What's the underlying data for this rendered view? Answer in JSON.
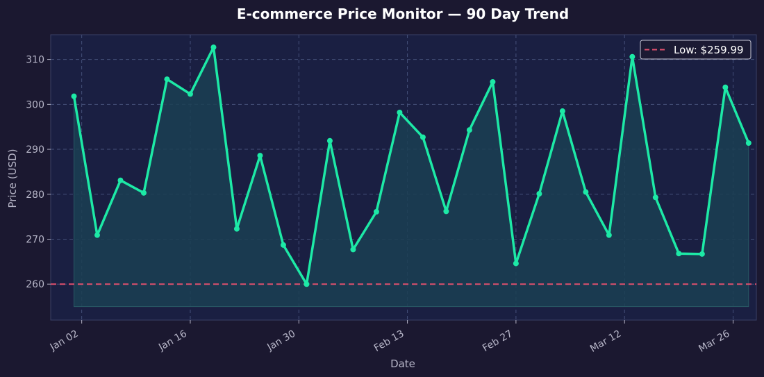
{
  "chart_data": {
    "type": "line",
    "title": "E-commerce Price Monitor — 90 Day Trend",
    "xlabel": "Date",
    "ylabel": "Price (USD)",
    "ylim": [
      252,
      315.5
    ],
    "xlim": [
      "2023-12-29",
      "2024-03-29"
    ],
    "grid": true,
    "legend_placement": "top-right",
    "x_ticks": [
      "Jan 02",
      "Jan 16",
      "Jan 30",
      "Feb 13",
      "Feb 27",
      "Mar 12",
      "Mar 26"
    ],
    "y_ticks": [
      260,
      270,
      280,
      290,
      300,
      310
    ],
    "series": [
      {
        "color": "#1de9a6",
        "x": [
          "2024-01-01",
          "2024-01-04",
          "2024-01-07",
          "2024-01-10",
          "2024-01-13",
          "2024-01-16",
          "2024-01-19",
          "2024-01-22",
          "2024-01-25",
          "2024-01-28",
          "2024-01-31",
          "2024-02-03",
          "2024-02-06",
          "2024-02-09",
          "2024-02-12",
          "2024-02-15",
          "2024-02-18",
          "2024-02-21",
          "2024-02-24",
          "2024-02-27",
          "2024-03-01",
          "2024-03-04",
          "2024-03-07",
          "2024-03-10",
          "2024-03-13",
          "2024-03-16",
          "2024-03-19",
          "2024-03-22",
          "2024-03-25",
          "2024-03-28"
        ],
        "values": [
          301.8,
          270.9,
          283.1,
          280.3,
          305.6,
          302.3,
          312.7,
          272.3,
          288.6,
          268.7,
          259.99,
          291.9,
          267.7,
          276.1,
          298.2,
          292.7,
          276.2,
          294.3,
          305.0,
          264.6,
          280.1,
          298.5,
          280.5,
          270.9,
          310.6,
          279.3,
          266.8,
          266.7,
          303.8,
          291.4
        ]
      }
    ],
    "fill_baseline": 255,
    "reference_lines": [
      {
        "label": "Low: $259.99",
        "value": 259.99,
        "color": "#e0506e",
        "style": "dashed"
      }
    ],
    "colors": {
      "background": "#1b1830",
      "plot_background": "#1a1f42",
      "grid": "#45507a",
      "fill": "#1b3f52"
    }
  }
}
